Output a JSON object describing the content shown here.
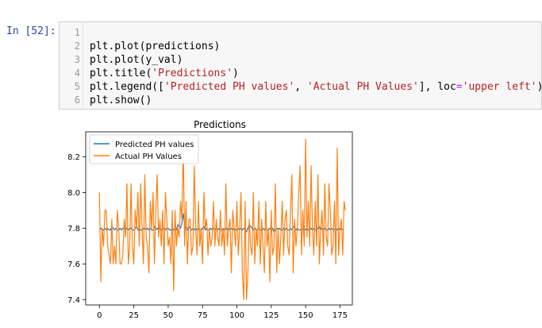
{
  "cell": {
    "prompt": "In [52]:",
    "lines": [
      {
        "n": "1",
        "code": ""
      },
      {
        "n": "2",
        "code": "plt.plot(predictions)"
      },
      {
        "n": "3",
        "code": "plt.plot(y_val)"
      },
      {
        "n": "4",
        "parts": [
          [
            "plt.title(",
            ""
          ],
          [
            "'Predictions'",
            "str"
          ],
          [
            ")",
            ""
          ]
        ]
      },
      {
        "n": "5",
        "parts": [
          [
            "plt.legend([",
            ""
          ],
          [
            "'Predicted PH values'",
            "str"
          ],
          [
            ", ",
            ""
          ],
          [
            "'Actual PH Values'",
            "str"
          ],
          [
            "], loc",
            ""
          ],
          [
            "=",
            "op"
          ],
          [
            "'upper left'",
            "str"
          ],
          [
            ")",
            ""
          ]
        ]
      },
      {
        "n": "6",
        "code": "plt.show()"
      }
    ]
  },
  "colors": {
    "predicted": "#1f77b4",
    "actual": "#ff7f0e"
  },
  "chart_data": {
    "type": "line",
    "title": "Predictions",
    "xlabel": "",
    "ylabel": "",
    "xlim": [
      -10,
      184
    ],
    "ylim": [
      7.37,
      8.34
    ],
    "xticks": [
      0,
      25,
      50,
      75,
      100,
      125,
      150,
      175
    ],
    "yticks": [
      7.4,
      7.6,
      7.8,
      8.0,
      8.2
    ],
    "grid": false,
    "legend_loc": "upper left",
    "series": [
      {
        "name": "Predicted PH values",
        "color": "#1f77b4",
        "values": [
          7.79,
          7.8,
          7.79,
          7.79,
          7.8,
          7.79,
          7.8,
          7.79,
          7.79,
          7.81,
          7.8,
          7.79,
          7.8,
          7.79,
          7.79,
          7.8,
          7.79,
          7.8,
          7.8,
          7.79,
          7.8,
          7.79,
          7.8,
          7.8,
          7.79,
          7.79,
          7.8,
          7.81,
          7.79,
          7.8,
          7.79,
          7.79,
          7.8,
          7.8,
          7.79,
          7.8,
          7.79,
          7.8,
          7.79,
          7.79,
          7.81,
          7.79,
          7.8,
          7.79,
          7.8,
          7.79,
          7.79,
          7.8,
          7.79,
          7.8,
          7.8,
          7.79,
          7.79,
          7.8,
          7.79,
          7.8,
          7.79,
          7.82,
          7.81,
          7.8,
          7.83,
          7.88,
          7.82,
          7.8,
          7.79,
          7.81,
          7.8,
          7.79,
          7.8,
          7.79,
          7.8,
          7.79,
          7.8,
          7.79,
          7.79,
          7.8,
          7.81,
          7.79,
          7.8,
          7.79,
          7.79,
          7.8,
          7.79,
          7.8,
          7.79,
          7.8,
          7.79,
          7.8,
          7.79,
          7.79,
          7.8,
          7.79,
          7.8,
          7.79,
          7.8,
          7.79,
          7.8,
          7.79,
          7.8,
          7.79,
          7.79,
          7.8,
          7.79,
          7.8,
          7.79,
          7.8,
          7.79,
          7.78,
          7.8,
          7.82,
          7.81,
          7.8,
          7.79,
          7.8,
          7.79,
          7.79,
          7.8,
          7.79,
          7.79,
          7.8,
          7.79,
          7.8,
          7.79,
          7.79,
          7.8,
          7.79,
          7.8,
          7.78,
          7.79,
          7.8,
          7.79,
          7.8,
          7.79,
          7.79,
          7.8,
          7.79,
          7.8,
          7.79,
          7.79,
          7.8,
          7.79,
          7.81,
          7.8,
          7.79,
          7.8,
          7.79,
          7.79,
          7.8,
          7.79,
          7.8,
          7.79,
          7.8,
          7.79,
          7.79,
          7.8,
          7.79,
          7.8,
          7.79,
          7.79,
          7.8,
          7.81,
          7.79,
          7.8,
          7.79,
          7.8,
          7.79,
          7.79,
          7.8,
          7.79,
          7.8,
          7.79,
          7.79,
          7.8,
          7.79,
          7.8,
          7.79,
          7.8,
          7.79
        ]
      },
      {
        "name": "Actual PH Values",
        "color": "#ff7f0e",
        "values": [
          8.0,
          7.5,
          7.8,
          7.7,
          7.9,
          7.9,
          7.7,
          7.65,
          7.6,
          7.85,
          7.6,
          7.7,
          7.6,
          7.9,
          7.8,
          7.6,
          7.6,
          7.65,
          7.85,
          7.75,
          8.05,
          7.6,
          7.7,
          8.05,
          7.7,
          7.6,
          7.9,
          7.8,
          8.0,
          7.7,
          8.05,
          7.8,
          7.6,
          8.1,
          7.75,
          7.7,
          7.55,
          7.95,
          7.8,
          8.0,
          7.6,
          7.9,
          8.1,
          7.75,
          7.85,
          7.7,
          7.9,
          7.6,
          8.0,
          7.85,
          7.7,
          7.75,
          7.6,
          7.9,
          7.45,
          7.9,
          7.7,
          7.8,
          7.75,
          7.95,
          7.85,
          8.25,
          7.7,
          7.95,
          7.6,
          7.85,
          7.85,
          7.65,
          7.7,
          8.15,
          7.8,
          7.65,
          7.95,
          7.7,
          7.8,
          7.6,
          8.0,
          7.8,
          7.85,
          7.65,
          7.8,
          7.7,
          7.75,
          7.95,
          7.7,
          7.85,
          7.75,
          7.7,
          7.9,
          7.7,
          7.8,
          7.65,
          8.05,
          7.7,
          7.8,
          7.85,
          7.55,
          7.9,
          7.8,
          7.7,
          7.95,
          7.65,
          7.8,
          8.0,
          7.55,
          7.4,
          7.95,
          7.4,
          7.55,
          7.85,
          7.7,
          7.65,
          8.0,
          7.6,
          7.8,
          7.7,
          7.95,
          7.6,
          7.85,
          7.7,
          7.55,
          7.95,
          7.7,
          7.8,
          7.5,
          7.9,
          7.65,
          7.7,
          8.05,
          7.55,
          7.8,
          7.6,
          7.75,
          7.95,
          7.65,
          7.85,
          7.9,
          7.7,
          7.65,
          7.9,
          8.1,
          7.55,
          7.85,
          7.7,
          7.8,
          8.0,
          8.15,
          7.65,
          7.9,
          7.7,
          8.3,
          7.75,
          7.95,
          7.7,
          8.15,
          7.8,
          7.65,
          7.95,
          7.7,
          8.1,
          7.6,
          7.8,
          7.9,
          7.65,
          8.05,
          7.75,
          7.7,
          8.05,
          7.9,
          7.65,
          7.7,
          7.95,
          7.6,
          8.25,
          7.65,
          7.8,
          7.85,
          7.65,
          7.95,
          7.9
        ]
      }
    ]
  }
}
